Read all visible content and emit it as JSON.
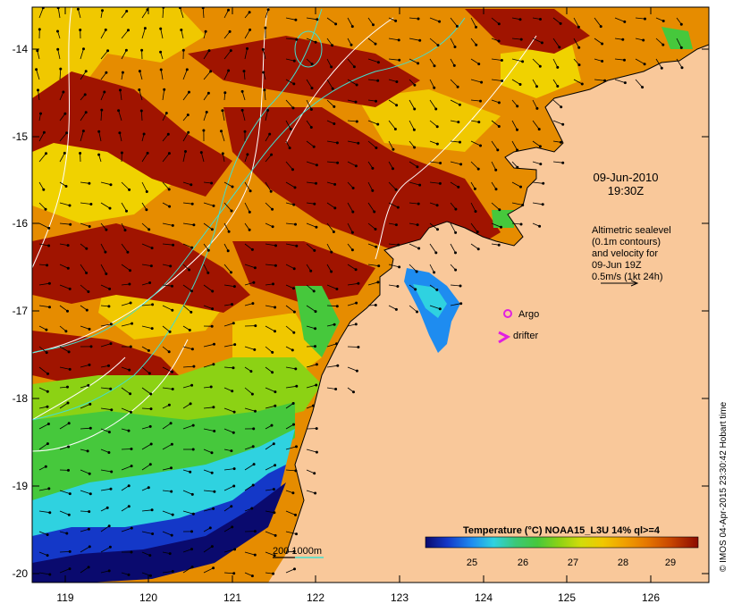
{
  "map": {
    "date": "09-Jun-2010",
    "time": "19:30Z",
    "lat_ticks": [
      "-14",
      "-15",
      "-16",
      "-17",
      "-18",
      "-19",
      "-20"
    ],
    "lon_ticks": [
      "119",
      "120",
      "121",
      "122",
      "123",
      "124",
      "125",
      "126"
    ],
    "altimetry_note": [
      "Altimetric sealevel",
      "(0.1m contours)",
      "and velocity for",
      "09-Jun 19Z",
      "0.5m/s (1kt 24h)"
    ],
    "legend_argo": "Argo",
    "legend_drifter": "drifter",
    "bathymetry_label": "200  1000m",
    "colorbar": {
      "title": "Temperature (°C) NOAA15_L3U 14% ql>=4",
      "ticks": [
        "25",
        "26",
        "27",
        "28",
        "29"
      ],
      "colors": [
        "#0a0a6e",
        "#1438c8",
        "#1e8cf0",
        "#2fd2e0",
        "#3cc878",
        "#46c83c",
        "#8cd214",
        "#d2dc0a",
        "#f0c800",
        "#f0a000",
        "#e67800",
        "#c84600",
        "#a01400",
        "#8c0a00"
      ]
    },
    "credit": "© IMOS 04-Apr-2015 23:30:42 Hobart time",
    "colors": {
      "land": "#f9c89a",
      "warm": "#a01400",
      "orange": "#e68c00",
      "yellow": "#f0d200",
      "green": "#46c83c",
      "cyan": "#2fd2e0",
      "blue": "#1438c8",
      "deep_blue": "#0a0a6e",
      "contour": "#ffffff",
      "isobath": "#40e0d0",
      "argo": "#e020e0"
    }
  }
}
